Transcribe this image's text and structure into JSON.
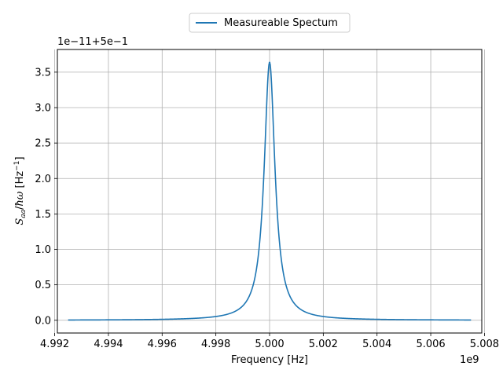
{
  "chart_data": {
    "type": "line",
    "xlabel": "Frequency [Hz]",
    "ylabel": "S_aa/ħω [Hz⁻¹]",
    "x_offset_label": "1e9",
    "y_offset_label": "1e−11+5e−1",
    "xlim": [
      4.9921,
      5.0079
    ],
    "ylim": [
      -0.18,
      3.82
    ],
    "x_ticks": [
      4.992,
      4.994,
      4.996,
      4.998,
      5.0,
      5.002,
      5.004,
      5.006,
      5.008
    ],
    "x_tick_labels": [
      "4.992",
      "4.994",
      "4.996",
      "4.998",
      "5.000",
      "5.002",
      "5.004",
      "5.006",
      "5.008"
    ],
    "y_ticks": [
      0.0,
      0.5,
      1.0,
      1.5,
      2.0,
      2.5,
      3.0,
      3.5
    ],
    "y_tick_labels": [
      "0.0",
      "0.5",
      "1.0",
      "1.5",
      "2.0",
      "2.5",
      "3.0",
      "3.5"
    ],
    "grid": true,
    "legend_position": "top-center",
    "series": [
      {
        "name": "Measureable Spectum",
        "color": "#1f77b4",
        "x": [
          4.9925,
          4.9935,
          4.9945,
          4.9955,
          4.9965,
          4.9975,
          4.998,
          4.9985,
          4.999,
          4.9993,
          4.9995,
          4.9997,
          4.9998,
          4.9999,
          4.99995,
          5.0,
          5.00005,
          5.0001,
          5.0002,
          5.0003,
          5.0005,
          5.0007,
          5.001,
          5.0015,
          5.002,
          5.0025,
          5.0035,
          5.0045,
          5.0055,
          5.0065,
          5.0075
        ],
        "y": [
          0.0,
          0.0,
          0.01,
          0.01,
          0.02,
          0.03,
          0.05,
          0.09,
          0.19,
          0.36,
          0.67,
          1.38,
          2.15,
          3.12,
          3.51,
          3.64,
          3.51,
          3.12,
          2.15,
          1.38,
          0.67,
          0.36,
          0.19,
          0.09,
          0.05,
          0.03,
          0.02,
          0.01,
          0.01,
          0.0,
          0.0
        ]
      }
    ]
  }
}
